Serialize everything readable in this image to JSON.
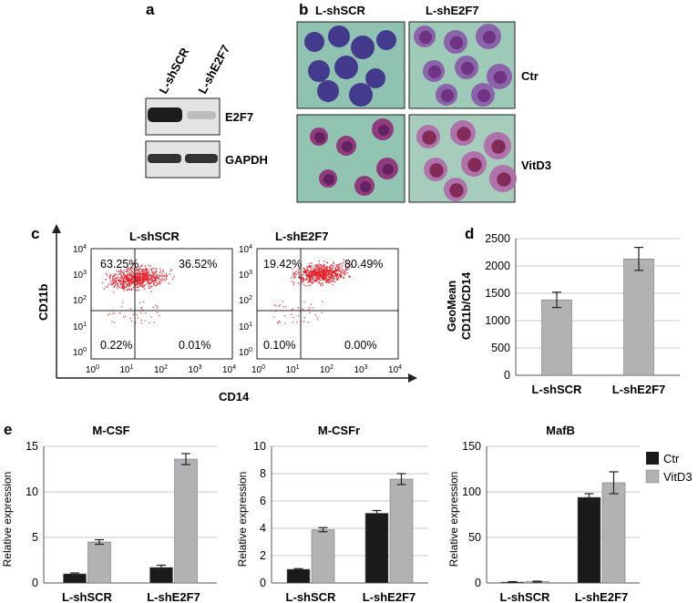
{
  "panel_letters": {
    "a": "a",
    "b": "b",
    "c": "c",
    "d": "d",
    "e": "e"
  },
  "panel_a": {
    "lanes": [
      "L-shSCR",
      "L-shE2F7"
    ],
    "bands": [
      "E2F7",
      "GAPDH"
    ]
  },
  "panel_b": {
    "columns": [
      "L-shSCR",
      "L-shE2F7"
    ],
    "rows": [
      "Ctr",
      "VitD3"
    ],
    "colors": {
      "background": "#8fc2b0",
      "cell_ctr_scr": "#3d2f8a",
      "cell_ctr_e2f7": "#8a5aa8",
      "cell_vitd3": "#8f2f7a"
    }
  },
  "panel_c": {
    "plots": [
      {
        "title": "L-shSCR",
        "quadrants": [
          "63.25%",
          "36.52%",
          "0.22%",
          "0.01%"
        ]
      },
      {
        "title": "L-shE2F7",
        "quadrants": [
          "19.42%",
          "80.49%",
          "0.10%",
          "0.00%"
        ]
      }
    ],
    "y_label": "CD11b",
    "x_label": "CD14",
    "y_ticks": [
      {
        "b": "10",
        "e": "4"
      },
      {
        "b": "10",
        "e": "3"
      },
      {
        "b": "10",
        "e": "2"
      },
      {
        "b": "10",
        "e": "1"
      },
      {
        "b": "10",
        "e": "0"
      }
    ],
    "x_ticks": [
      {
        "b": "10",
        "e": "0"
      },
      {
        "b": "10",
        "e": "1"
      },
      {
        "b": "10",
        "e": "2"
      },
      {
        "b": "10",
        "e": "3"
      },
      {
        "b": "10",
        "e": "4"
      }
    ],
    "dot_color": "#e8202a"
  },
  "chart_data": [
    {
      "type": "bar",
      "panel": "d",
      "categories": [
        "L-shSCR",
        "L-shE2F7"
      ],
      "series": [
        {
          "values": [
            1380,
            2130
          ],
          "errors": [
            140,
            210
          ]
        }
      ],
      "ylabel": "GeoMean CD11b/CD14",
      "ylabel_lines": [
        "GeoMean",
        "CD11b/CD14"
      ],
      "ylim": [
        0,
        2500
      ],
      "yticks": [
        0,
        500,
        1000,
        1500,
        2000,
        2500
      ],
      "bar_color": "#b0b2b4",
      "grid": true
    },
    {
      "type": "bar",
      "panel": "e",
      "title": "M-CSF",
      "categories": [
        "L-shSCR",
        "L-shE2F7"
      ],
      "series": [
        {
          "name": "Ctr",
          "values": [
            1.0,
            1.7
          ],
          "errors": [
            0.1,
            0.25
          ]
        },
        {
          "name": "VitD3",
          "values": [
            4.5,
            13.6
          ],
          "errors": [
            0.25,
            0.6
          ]
        }
      ],
      "ylabel": "Relative expression",
      "ylim": [
        0,
        15
      ],
      "yticks": [
        0,
        5,
        10,
        15
      ],
      "grid": true
    },
    {
      "type": "bar",
      "panel": "e",
      "title": "M-CSFr",
      "categories": [
        "L-shSCR",
        "L-shE2F7"
      ],
      "series": [
        {
          "name": "Ctr",
          "values": [
            1.0,
            5.1
          ],
          "errors": [
            0.05,
            0.2
          ]
        },
        {
          "name": "VitD3",
          "values": [
            3.9,
            7.6
          ],
          "errors": [
            0.15,
            0.4
          ]
        }
      ],
      "ylabel": "Relative expression",
      "ylim": [
        0,
        10
      ],
      "yticks": [
        0,
        2,
        4,
        6,
        8,
        10
      ],
      "grid": true
    },
    {
      "type": "bar",
      "panel": "e",
      "title": "MafB",
      "categories": [
        "L-shSCR",
        "L-shE2F7"
      ],
      "series": [
        {
          "name": "Ctr",
          "values": [
            1,
            94
          ],
          "errors": [
            0.5,
            4
          ]
        },
        {
          "name": "VitD3",
          "values": [
            1.5,
            110
          ],
          "errors": [
            0.5,
            12
          ]
        }
      ],
      "ylabel": "Relative expression",
      "ylim": [
        0,
        150
      ],
      "yticks": [
        0,
        50,
        100,
        150
      ],
      "grid": true
    }
  ],
  "legend_e": [
    {
      "name": "Ctr",
      "color": "#1a1a1a"
    },
    {
      "name": "VitD3",
      "color": "#b0b2b4"
    }
  ],
  "colors": {
    "ctr": "#1a1a1a",
    "vitd3": "#b0b2b4",
    "grid": "#c8c8c8",
    "axis": "#555555"
  }
}
